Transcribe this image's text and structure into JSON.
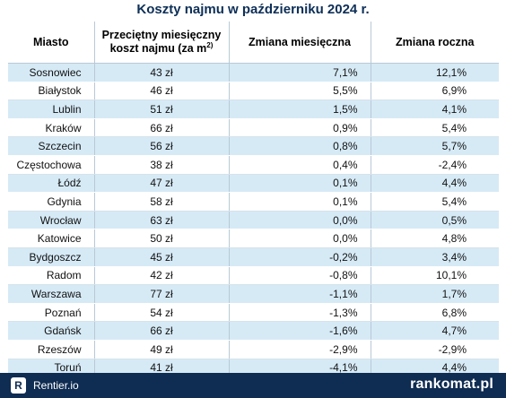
{
  "title": "Koszty najmu w październiku 2024 r.",
  "headers": {
    "city": "Miasto",
    "cost": "Przeciętny miesięczny koszt najmu (za m",
    "cost_sup": "2)",
    "monthly": "Zmiana miesięczna",
    "yearly": "Zmiana roczna"
  },
  "rows": [
    {
      "city": "Sosnowiec",
      "cost": "43 zł",
      "monthly": "7,1%",
      "yearly": "12,1%"
    },
    {
      "city": "Białystok",
      "cost": "46 zł",
      "monthly": "5,5%",
      "yearly": "6,9%"
    },
    {
      "city": "Lublin",
      "cost": "51 zł",
      "monthly": "1,5%",
      "yearly": "4,1%"
    },
    {
      "city": "Kraków",
      "cost": "66 zł",
      "monthly": "0,9%",
      "yearly": "5,4%"
    },
    {
      "city": "Szczecin",
      "cost": "56 zł",
      "monthly": "0,8%",
      "yearly": "5,7%"
    },
    {
      "city": "Częstochowa",
      "cost": "38 zł",
      "monthly": "0,4%",
      "yearly": "-2,4%"
    },
    {
      "city": "Łódź",
      "cost": "47 zł",
      "monthly": "0,1%",
      "yearly": "4,4%"
    },
    {
      "city": "Gdynia",
      "cost": "58 zł",
      "monthly": "0,1%",
      "yearly": "5,4%"
    },
    {
      "city": "Wrocław",
      "cost": "63 zł",
      "monthly": "0,0%",
      "yearly": "0,5%"
    },
    {
      "city": "Katowice",
      "cost": "50 zł",
      "monthly": "0,0%",
      "yearly": "4,8%"
    },
    {
      "city": "Bydgoszcz",
      "cost": "45 zł",
      "monthly": "-0,2%",
      "yearly": "3,4%"
    },
    {
      "city": "Radom",
      "cost": "42 zł",
      "monthly": "-0,8%",
      "yearly": "10,1%"
    },
    {
      "city": "Warszawa",
      "cost": "77 zł",
      "monthly": "-1,1%",
      "yearly": "1,7%"
    },
    {
      "city": "Poznań",
      "cost": "54 zł",
      "monthly": "-1,3%",
      "yearly": "6,8%"
    },
    {
      "city": "Gdańsk",
      "cost": "66 zł",
      "monthly": "-1,6%",
      "yearly": "4,7%"
    },
    {
      "city": "Rzeszów",
      "cost": "49 zł",
      "monthly": "-2,9%",
      "yearly": "-2,9%"
    },
    {
      "city": "Toruń",
      "cost": "41 zł",
      "monthly": "-4,1%",
      "yearly": "4,4%"
    }
  ],
  "footer": {
    "rentier_badge": "R",
    "rentier_text": "Rentier.io",
    "rankomat_text": "rankomat.pl"
  },
  "colors": {
    "title": "#0d2f57",
    "row_stripe": "#d6eaf6",
    "footer_bg": "#0f2c52"
  }
}
